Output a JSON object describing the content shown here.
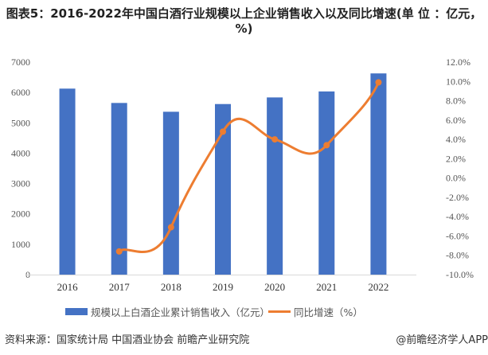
{
  "title": "图表5：2016-2022年中国白酒行业规模以上企业销售收入以及同比增速(单 位 ：亿元，%)",
  "chart_data": {
    "type": "bar+line",
    "title": "图表5：2016-2022年中国白酒行业规模以上企业销售收入以及同比增速(单 位 ：亿元，%)",
    "categories": [
      "2016",
      "2017",
      "2018",
      "2019",
      "2020",
      "2021",
      "2022"
    ],
    "series": [
      {
        "name": "规模以上白酒企业累计销售收入（亿元）",
        "type": "bar",
        "axis": "left",
        "color": "#4472C4",
        "values": [
          6126,
          5654,
          5364,
          5618,
          5836,
          6033,
          6627
        ]
      },
      {
        "name": "同比增速（%）",
        "type": "line",
        "smooth": true,
        "axis": "right",
        "color": "#ED7D31",
        "values": [
          null,
          -7.6,
          -5.1,
          4.8,
          4.0,
          3.4,
          9.9
        ]
      }
    ],
    "y_left": {
      "min": 0,
      "max": 7000,
      "ticks": [
        "0",
        "1000",
        "2000",
        "3000",
        "4000",
        "5000",
        "6000",
        "7000"
      ]
    },
    "y_right": {
      "min": -10,
      "max": 12,
      "ticks": [
        "-10.0%",
        "-8.0%",
        "-6.0%",
        "-4.0%",
        "-2.0%",
        "0.0%",
        "2.0%",
        "4.0%",
        "6.0%",
        "8.0%",
        "10.0%",
        "12.0%"
      ]
    },
    "grid": false,
    "legend": "bottom"
  },
  "footer": {
    "source": "资料来源：国家统计局 中国酒业协会 前瞻产业研究院",
    "brand": "@前瞻经济学人APP"
  }
}
